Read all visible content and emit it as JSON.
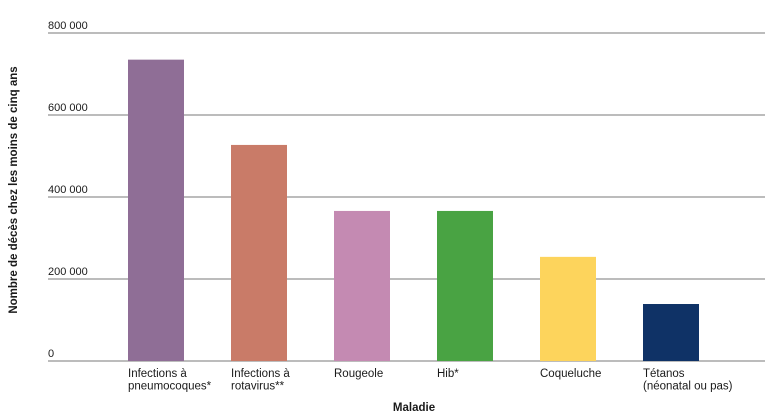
{
  "chart_data": {
    "type": "bar",
    "title": "",
    "xlabel": "Maladie",
    "ylabel": "Nombre de décès chez les moins de cinq ans",
    "ylim": [
      0,
      800000
    ],
    "yticks": [
      0,
      200000,
      400000,
      600000,
      800000
    ],
    "ytick_labels": [
      "0",
      "200 000",
      "400 000",
      "600 000",
      "800 000"
    ],
    "grid": "horizontal",
    "categories": [
      [
        "Infections à",
        "pneumocoques*"
      ],
      [
        "Infections à",
        "rotavirus**"
      ],
      [
        "Rougeole"
      ],
      [
        "Hib*"
      ],
      [
        "Coqueluche"
      ],
      [
        "Tétanos",
        "(néonatal ou pas)"
      ]
    ],
    "values": [
      735000,
      527000,
      366000,
      366000,
      254000,
      139000
    ],
    "colors": [
      "#8f6e96",
      "#c97b68",
      "#c48ab2",
      "#49a343",
      "#fdd45c",
      "#0f3266"
    ]
  }
}
